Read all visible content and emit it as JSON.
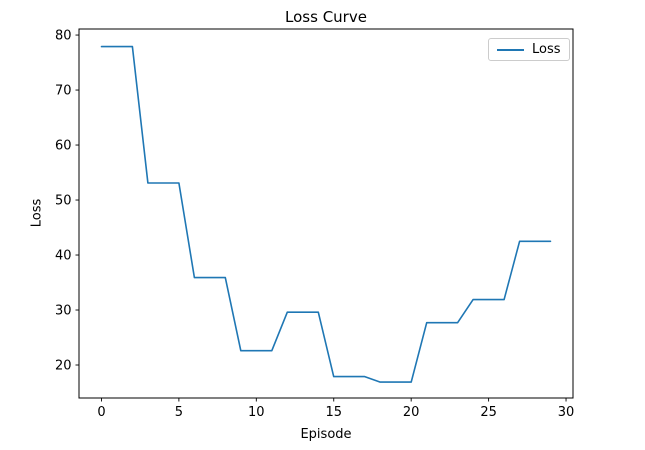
{
  "chart_data": {
    "type": "line",
    "title": "Loss Curve",
    "xlabel": "Episode",
    "ylabel": "Loss",
    "x": [
      0,
      1,
      2,
      3,
      4,
      5,
      6,
      7,
      8,
      9,
      10,
      11,
      12,
      13,
      14,
      15,
      16,
      17,
      18,
      19,
      20,
      21,
      22,
      23,
      24,
      25,
      26,
      27,
      28,
      29
    ],
    "series": [
      {
        "name": "Loss",
        "color": "#1f77b4",
        "values": [
          77.9,
          77.9,
          77.9,
          53.1,
          53.1,
          53.1,
          35.9,
          35.9,
          35.9,
          22.6,
          22.6,
          22.6,
          29.6,
          29.6,
          29.6,
          17.9,
          17.9,
          17.9,
          16.9,
          16.9,
          16.9,
          27.7,
          27.7,
          27.7,
          31.9,
          31.9,
          31.9,
          42.5,
          42.5,
          42.5
        ]
      }
    ],
    "xticks": [
      0,
      5,
      10,
      15,
      20,
      25,
      30
    ],
    "yticks": [
      20,
      30,
      40,
      50,
      60,
      70,
      80
    ],
    "xlim": [
      -1.45,
      30.45
    ],
    "ylim": [
      14.0,
      81.1
    ],
    "grid": false,
    "legend": {
      "visible": true,
      "location": "upper right"
    },
    "colors": {
      "line": "#1f77b4",
      "spine": "#000000",
      "background": "#ffffff",
      "legend_border": "#cccccc"
    }
  }
}
